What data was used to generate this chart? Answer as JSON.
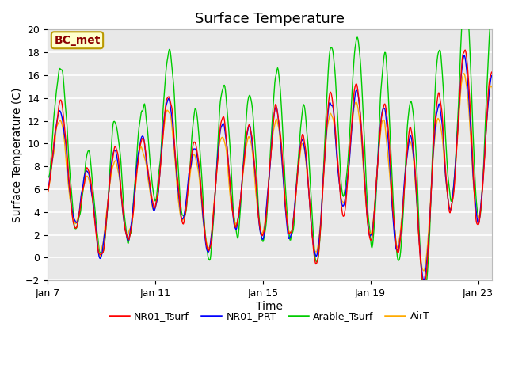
{
  "title": "Surface Temperature",
  "xlabel": "Time",
  "ylabel": "Surface Temperature (C)",
  "ylim": [
    -2,
    20
  ],
  "yticks": [
    -2,
    0,
    2,
    4,
    6,
    8,
    10,
    12,
    14,
    16,
    18,
    20
  ],
  "xtick_labels": [
    "Jan 7",
    "Jan 11",
    "Jan 15",
    "Jan 19",
    "Jan 23"
  ],
  "colors": {
    "NR01_Tsurf": "#ff0000",
    "NR01_PRT": "#0000ff",
    "Arable_Tsurf": "#00cc00",
    "AirT": "#ffaa00"
  },
  "legend_labels": [
    "NR01_Tsurf",
    "NR01_PRT",
    "Arable_Tsurf",
    "AirT"
  ],
  "annotation_text": "BC_met",
  "annotation_bg": "#ffffcc",
  "annotation_border": "#bb9900",
  "plot_bg": "#e8e8e8",
  "fig_bg": "#ffffff",
  "title_fontsize": 13,
  "axis_label_fontsize": 10,
  "tick_fontsize": 9,
  "legend_fontsize": 9,
  "n_days": 17,
  "xtick_positions": [
    0,
    4,
    8,
    12,
    16
  ],
  "xlim_end": 16.5
}
